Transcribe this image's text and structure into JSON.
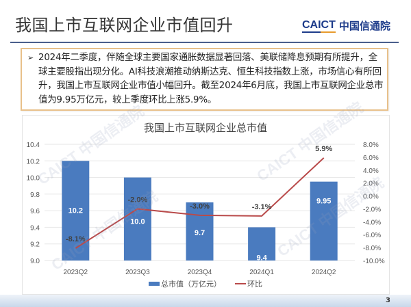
{
  "slide": {
    "title": "我国上市互联网企业市值回升",
    "logo": {
      "en": "CAICT",
      "cn": "中国信通院"
    },
    "page_number": "3",
    "watermark": "CAICT 中国信通院"
  },
  "summary": {
    "bullet": "➢",
    "text": "2024年二季度，伴随全球主要国家通胀数据显著回落、美联储降息预期有所提升，全球主要股指出现分化。AI科技浪潮推动纳斯达克、恒生科技指数上涨，市场信心有所回升，我国上市互联网企业市值小幅回升。截至2024年6月底，我国上市互联网企业总市值为9.95万亿元，较上季度环比上涨5.9%。"
  },
  "colors": {
    "bar": "#4a7bbf",
    "line": "#b94a4a",
    "summary_border": "#e8c08a",
    "title_rule": "#4a5f8c",
    "logo": "#1d3b8a"
  },
  "chart_data": {
    "type": "bar",
    "title": "我国上市互联网企业总市值",
    "categories": [
      "2023Q2",
      "2023Q3",
      "2023Q4",
      "2024Q1",
      "2024Q2"
    ],
    "series": [
      {
        "name": "总市值（万亿元）",
        "type": "bar",
        "axis": "left",
        "values": [
          10.2,
          10.0,
          9.7,
          9.4,
          9.95
        ],
        "labels": [
          "10.2",
          "10.0",
          "9.7",
          "9.4",
          "9.95"
        ]
      },
      {
        "name": "环比",
        "type": "line",
        "axis": "right",
        "values": [
          -8.1,
          -2.0,
          -3.0,
          -3.1,
          5.9
        ],
        "labels": [
          "-8.1%",
          "-2.0%",
          "-3.0%",
          "-3.1%",
          "5.9%"
        ]
      }
    ],
    "y_left": {
      "ylim": [
        9.0,
        10.4
      ],
      "ticks": [
        "10.4",
        "10.2",
        "10.0",
        "9.8",
        "9.6",
        "9.4",
        "9.2",
        "9.0"
      ]
    },
    "y_right": {
      "ylim": [
        -10.0,
        8.0
      ],
      "ticks": [
        "8.0%",
        "6.0%",
        "4.0%",
        "2.0%",
        "0.0%",
        "-2.0%",
        "-4.0%",
        "-6.0%",
        "-8.0%",
        "-10.0%"
      ]
    },
    "xlabel": "",
    "ylabel": "",
    "grid": true,
    "legend_position": "bottom"
  }
}
